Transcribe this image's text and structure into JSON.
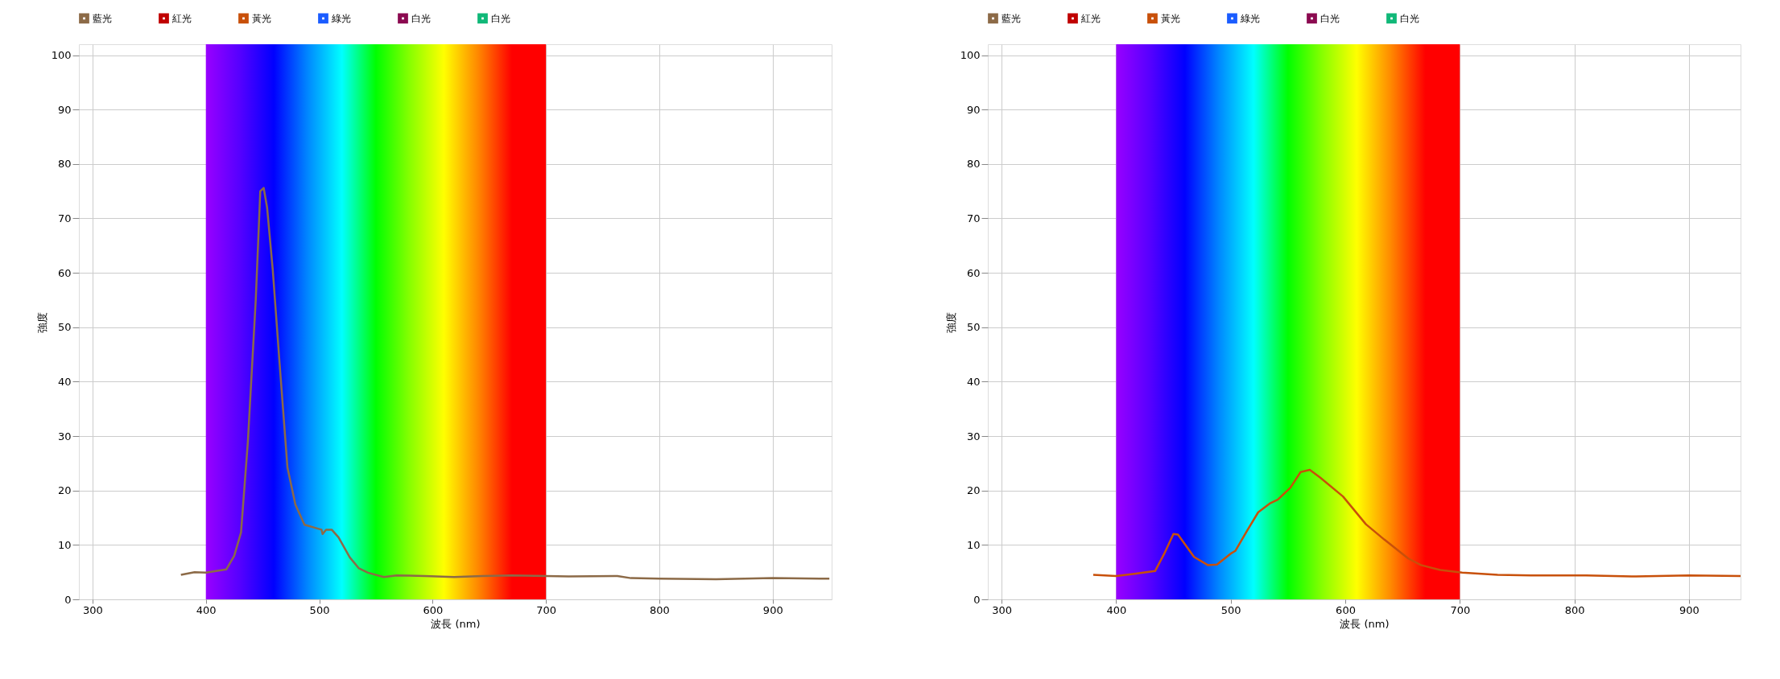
{
  "chart_data": [
    {
      "type": "line",
      "xlabel": "波長 (nm)",
      "ylabel": "強度",
      "xlim": [
        288,
        952
      ],
      "ylim": [
        0,
        102
      ],
      "xticks": [
        300,
        400,
        500,
        600,
        700,
        800,
        900
      ],
      "yticks": [
        0,
        10,
        20,
        30,
        40,
        50,
        60,
        70,
        80,
        90,
        100
      ],
      "grid": true,
      "legend": "top left",
      "marker": "none",
      "line_style": "solid",
      "bands": [
        {
          "axis": "x",
          "from": 400,
          "to": 700
        }
      ],
      "series": [
        {
          "name": "藍光",
          "color": "#8c6a47",
          "x": [
            378,
            390,
            400,
            418,
            425,
            431,
            437,
            444,
            448,
            451,
            454,
            459,
            465,
            472,
            479,
            487,
            497,
            502,
            503,
            506,
            511,
            517,
            527,
            535,
            543,
            557,
            568,
            593,
            619,
            644,
            670,
            700,
            720,
            763,
            775,
            800,
            850,
            900,
            950
          ],
          "values": [
            4.5,
            5.0,
            4.9,
            5.5,
            8,
            12.3,
            28.8,
            55,
            75,
            75.6,
            72,
            60.6,
            43.5,
            24.2,
            17.4,
            13.7,
            13.1,
            12.8,
            12,
            12.8,
            12.8,
            11.4,
            7.7,
            5.7,
            4.9,
            4.1,
            4.4,
            4.3,
            4.1,
            4.3,
            4.4,
            4.3,
            4.2,
            4.3,
            3.9,
            3.8,
            3.7,
            3.9,
            3.8
          ]
        },
        {
          "name": "紅光",
          "color": "#c00000"
        },
        {
          "name": "黃光",
          "color": "#c8500a"
        },
        {
          "name": "綠光",
          "color": "#1a5cff"
        },
        {
          "name": "白光",
          "color": "#8b0a50"
        },
        {
          "name": "白光",
          "color": "#10b878"
        }
      ]
    },
    {
      "type": "line",
      "xlabel": "波長 (nm)",
      "ylabel": "強度",
      "xlim": [
        288,
        945
      ],
      "ylim": [
        0,
        102
      ],
      "xticks": [
        300,
        400,
        500,
        600,
        700,
        800,
        900
      ],
      "yticks": [
        0,
        10,
        20,
        30,
        40,
        50,
        60,
        70,
        80,
        90,
        100
      ],
      "grid": true,
      "legend": "top left",
      "marker": "none",
      "line_style": "solid",
      "bands": [
        {
          "axis": "x",
          "from": 400,
          "to": 700
        }
      ],
      "series": [
        {
          "name": "藍光",
          "color": "#8c6a47"
        },
        {
          "name": "紅光",
          "color": "#c00000"
        },
        {
          "name": "黃光",
          "color": "#c8500a",
          "x": [
            380,
            400,
            416,
            434,
            442,
            450,
            454,
            468,
            480,
            488,
            500,
            504,
            514,
            524,
            534,
            541,
            552,
            561,
            569,
            578,
            598,
            618,
            634,
            655,
            666,
            683,
            702,
            733,
            762,
            810,
            850,
            900,
            945
          ],
          "values": [
            4.5,
            4.3,
            4.7,
            5.2,
            8.4,
            12,
            11.9,
            7.8,
            6.3,
            6.4,
            8.4,
            8.9,
            12.5,
            16,
            17.6,
            18.3,
            20.5,
            23.4,
            23.8,
            22.4,
            18.9,
            13.8,
            11,
            7.5,
            6.3,
            5.4,
            4.9,
            4.5,
            4.4,
            4.4,
            4.2,
            4.4,
            4.3
          ]
        },
        {
          "name": "綠光",
          "color": "#1a5cff"
        },
        {
          "name": "白光",
          "color": "#8b0a50"
        },
        {
          "name": "白光",
          "color": "#10b878"
        }
      ]
    }
  ]
}
